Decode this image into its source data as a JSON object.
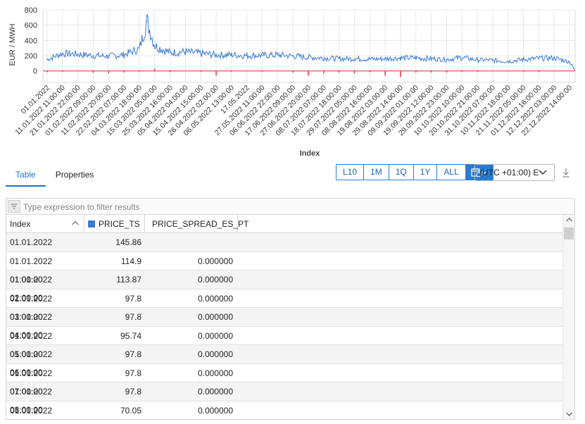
{
  "chart_data": {
    "type": "line",
    "title": "",
    "xlabel": "Index",
    "ylabel": "EUR / MWH",
    "ylim": [
      -150,
      800
    ],
    "yticks": [
      800,
      600,
      400,
      200,
      0
    ],
    "grid": true,
    "x_tick_labels": [
      "01.01.2022",
      "11.01.2022 11:00:00",
      "21.01.2022 22:00:00",
      "01.02.2022 09:00:00",
      "11.02.2022 20:00:00",
      "22.02.2022 07:00:00",
      "04.03.2022 18:00:00",
      "15.03.2022 05:00:00",
      "25.03.2022 16:00:00",
      "05.04.2022 04:00:00",
      "15.04.2022 15:00:00",
      "26.04.2022 02:00:00",
      "06.05.2022 13:00:00",
      "17.05.2022",
      "27.05.2022 11:00:00",
      "06.06.2022 22:00:00",
      "17.06.2022 09:00:00",
      "27.06.2022 20:00:00",
      "08.07.2022 07:00:00",
      "18.07.2022 18:00:00",
      "29.07.2022 05:00:00",
      "08.08.2022 16:00:00",
      "19.08.2022 03:00:00",
      "29.08.2022 14:00:00",
      "09.09.2022 01:00:00",
      "19.09.2022 12:00:00",
      "29.09.2022 23:00:00",
      "10.10.2022 10:00:00",
      "20.10.2022 21:00:00",
      "31.10.2022 07:00:00",
      "10.11.2022 18:00:00",
      "21.11.2022 05:00:00",
      "01.12.2022 16:00:00",
      "12.12.2022 03:00:00",
      "22.12.2022 14:00:00"
    ],
    "series": [
      {
        "name": "PRICE_TS",
        "color": "#3a7bd5",
        "x": [
          "01.01.2022",
          "11.01.2022 11:00:00",
          "21.01.2022 22:00:00",
          "01.02.2022 09:00:00",
          "11.02.2022 20:00:00",
          "22.02.2022 07:00:00",
          "04.03.2022 18:00:00",
          "08.03.2022 12:00:00",
          "15.03.2022 05:00:00",
          "25.03.2022 16:00:00",
          "05.04.2022 04:00:00",
          "15.04.2022 15:00:00",
          "26.04.2022 02:00:00",
          "06.05.2022 13:00:00",
          "17.05.2022",
          "27.05.2022 11:00:00",
          "06.06.2022 22:00:00",
          "17.06.2022 09:00:00",
          "27.06.2022 20:00:00",
          "08.07.2022 07:00:00",
          "18.07.2022 18:00:00",
          "29.07.2022 05:00:00",
          "08.08.2022 16:00:00",
          "19.08.2022 03:00:00",
          "29.08.2022 14:00:00",
          "09.09.2022 01:00:00",
          "19.09.2022 12:00:00",
          "29.09.2022 23:00:00",
          "10.10.2022 10:00:00",
          "20.10.2022 21:00:00",
          "31.10.2022 07:00:00",
          "10.11.2022 18:00:00",
          "21.11.2022 05:00:00",
          "01.12.2022 16:00:00",
          "12.12.2022 03:00:00",
          "22.12.2022 14:00:00",
          "31.12.2022 23:00:00"
        ],
        "values": [
          150,
          230,
          220,
          200,
          195,
          210,
          290,
          650,
          330,
          240,
          250,
          230,
          210,
          210,
          200,
          205,
          210,
          195,
          180,
          170,
          160,
          160,
          155,
          160,
          170,
          170,
          160,
          150,
          175,
          145,
          140,
          125,
          150,
          165,
          170,
          120,
          20
        ]
      },
      {
        "name": "PRICE_SPREAD_ES_PT",
        "color": "#e0303f",
        "x": [
          "01.01.2022",
          "11.01.2022 11:00:00",
          "21.01.2022 22:00:00",
          "01.02.2022 09:00:00",
          "11.02.2022 20:00:00",
          "22.02.2022 07:00:00",
          "04.03.2022 18:00:00",
          "15.03.2022 05:00:00",
          "25.03.2022 16:00:00",
          "05.04.2022 04:00:00",
          "15.04.2022 15:00:00",
          "26.04.2022 02:00:00",
          "06.05.2022 13:00:00",
          "17.05.2022",
          "27.05.2022 11:00:00",
          "06.06.2022 22:00:00",
          "17.06.2022 09:00:00",
          "27.06.2022 20:00:00",
          "08.07.2022 07:00:00",
          "18.07.2022 18:00:00",
          "29.07.2022 05:00:00",
          "08.08.2022 16:00:00",
          "19.08.2022 03:00:00",
          "29.08.2022 14:00:00",
          "09.09.2022 01:00:00",
          "19.09.2022 12:00:00",
          "29.09.2022 23:00:00",
          "10.10.2022 10:00:00",
          "20.10.2022 21:00:00",
          "31.10.2022 07:00:00",
          "10.11.2022 18:00:00",
          "21.11.2022 05:00:00",
          "01.12.2022 16:00:00",
          "12.12.2022 03:00:00",
          "22.12.2022 14:00:00"
        ],
        "values": [
          -15,
          -10,
          -5,
          -25,
          -30,
          -20,
          -10,
          30,
          -15,
          -5,
          -10,
          -60,
          -10,
          -5,
          -10,
          -5,
          -20,
          -60,
          -30,
          -20,
          -30,
          -15,
          -60,
          -80,
          -20,
          -20,
          -20,
          -10,
          -10,
          -5,
          -5,
          -10,
          -10,
          -5,
          0
        ]
      }
    ]
  },
  "tabs": [
    {
      "label": "Table",
      "active": true
    },
    {
      "label": "Properties",
      "active": false
    }
  ],
  "range_buttons": [
    "L10",
    "1M",
    "1Q",
    "1Y",
    "ALL"
  ],
  "timezone": {
    "value": "(UTC +01:00) E"
  },
  "filter": {
    "placeholder": "Type expression to filter results"
  },
  "table": {
    "columns": [
      {
        "label": "Index",
        "swatch": ""
      },
      {
        "label": "PRICE_TS",
        "swatch": "#3a7bd5"
      },
      {
        "label": "PRICE_SPREAD_ES_PT",
        "swatch": "#e0303f"
      }
    ],
    "rows": [
      [
        "01.01.2022",
        "145.86",
        ""
      ],
      [
        "01.01.2022 01:00:00",
        "114.9",
        "0.000000"
      ],
      [
        "01.01.2022 02:00:00",
        "113.87",
        "0.000000"
      ],
      [
        "01.01.2022 03:00:00",
        "97.8",
        "0.000000"
      ],
      [
        "01.01.2022 04:00:00",
        "97.8",
        "0.000000"
      ],
      [
        "01.01.2022 05:00:00",
        "95.74",
        "0.000000"
      ],
      [
        "01.01.2022 06:00:00",
        "97.8",
        "0.000000"
      ],
      [
        "01.01.2022 07:00:00",
        "97.8",
        "0.000000"
      ],
      [
        "01.01.2022 08:00:00",
        "97.8",
        "0.000000"
      ],
      [
        "01.01.2022 09:00:00",
        "70.05",
        "0.000000"
      ]
    ]
  }
}
